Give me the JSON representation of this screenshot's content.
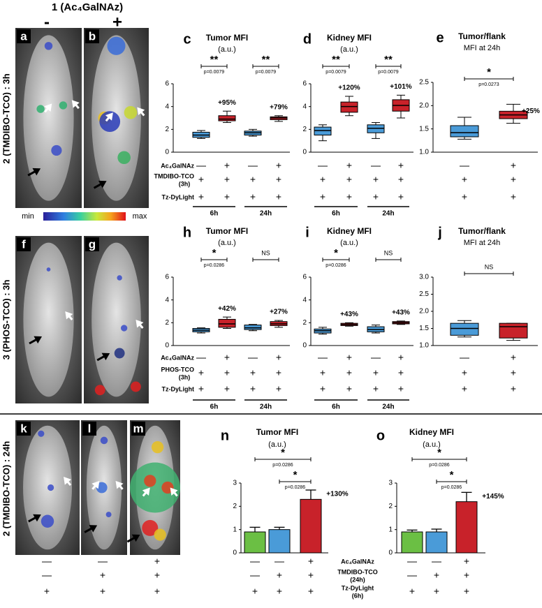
{
  "header": {
    "title": "1 (Ac₄GalNAz)",
    "minus": "-",
    "plus": "+"
  },
  "row_labels": [
    "2 (TMDIBO-TCO) : 3h",
    "3 (PHOS-TCO) : 3h",
    "2 (TMDIBO-TCO) : 24h"
  ],
  "image_panels": [
    "a",
    "b",
    "f",
    "g",
    "k",
    "l",
    "m"
  ],
  "colorbar": {
    "min": "min",
    "max": "max"
  },
  "image_conditions": [
    [
      "—",
      "—",
      "+"
    ],
    [
      "—",
      "+",
      "+"
    ],
    [
      "+",
      "+",
      "+"
    ]
  ],
  "chart_data": [
    {
      "type": "box",
      "panel": "c",
      "title": "Tumor MFI",
      "subtitle": "(a.u.)",
      "ylim": [
        0,
        6
      ],
      "yticks": [
        0,
        2,
        4,
        6
      ],
      "boxes": [
        {
          "color": "#4a9bd8",
          "whislo": 1.2,
          "q1": 1.3,
          "med": 1.5,
          "q3": 1.75,
          "whishi": 1.9
        },
        {
          "color": "#c8222a",
          "whislo": 2.6,
          "q1": 2.75,
          "med": 2.9,
          "q3": 3.2,
          "whishi": 3.6
        },
        {
          "color": "#4a9bd8",
          "whislo": 1.4,
          "q1": 1.5,
          "med": 1.7,
          "q3": 1.85,
          "whishi": 2.0
        },
        {
          "color": "#c8222a",
          "whislo": 2.7,
          "q1": 2.85,
          "med": 3.0,
          "q3": 3.1,
          "whishi": 3.2
        }
      ],
      "brackets": [
        {
          "label": "**",
          "p": "p=0.0079"
        },
        {
          "label": "**",
          "p": "p=0.0079"
        }
      ],
      "changes": [
        "+95%",
        "+79%"
      ],
      "conditions": {
        "rows": [
          {
            "label": "Ac₄GalNAz",
            "signs": [
              "—",
              "+",
              "—",
              "+"
            ]
          },
          {
            "label": "TMDIBO-TCO",
            "note": "(3h)",
            "signs": [
              "+",
              "+",
              "+",
              "+"
            ]
          },
          {
            "label": "Tz-DyLight",
            "signs": [
              "+",
              "+",
              "+",
              "+"
            ]
          }
        ],
        "groups": [
          "6h",
          "24h"
        ]
      }
    },
    {
      "type": "box",
      "panel": "d",
      "title": "Kidney MFI",
      "subtitle": "(a.u.)",
      "ylim": [
        0,
        6
      ],
      "yticks": [
        0,
        2,
        4,
        6
      ],
      "boxes": [
        {
          "color": "#4a9bd8",
          "whislo": 1.0,
          "q1": 1.5,
          "med": 1.9,
          "q3": 2.2,
          "whishi": 2.4
        },
        {
          "color": "#c8222a",
          "whislo": 3.2,
          "q1": 3.5,
          "med": 4.0,
          "q3": 4.4,
          "whishi": 4.9
        },
        {
          "color": "#4a9bd8",
          "whislo": 1.2,
          "q1": 1.7,
          "med": 2.1,
          "q3": 2.4,
          "whishi": 2.6
        },
        {
          "color": "#c8222a",
          "whislo": 3.0,
          "q1": 3.6,
          "med": 4.1,
          "q3": 4.6,
          "whishi": 5.0
        }
      ],
      "brackets": [
        {
          "label": "**",
          "p": "p=0.0079"
        },
        {
          "label": "**",
          "p": "p=0.0079"
        }
      ],
      "changes": [
        "+120%",
        "+101%"
      ],
      "conditions": {
        "rows": [
          {
            "signs": [
              "—",
              "+",
              "—",
              "+"
            ]
          },
          {
            "signs": [
              "+",
              "+",
              "+",
              "+"
            ]
          },
          {
            "signs": [
              "+",
              "+",
              "+",
              "+"
            ]
          }
        ],
        "groups": [
          "6h",
          "24h"
        ]
      }
    },
    {
      "type": "box",
      "panel": "e",
      "title": "Tumor/flank",
      "subtitle": "MFI at 24h",
      "ylim": [
        1.0,
        2.5
      ],
      "yticks": [
        {
          "value": 1,
          "label": "1.0"
        },
        1.5,
        {
          "value": 2,
          "label": "2.0"
        },
        2.5
      ],
      "boxes": [
        {
          "color": "#4a9bd8",
          "whislo": 1.28,
          "q1": 1.33,
          "med": 1.42,
          "q3": 1.57,
          "whishi": 1.75
        },
        {
          "color": "#c8222a",
          "whislo": 1.62,
          "q1": 1.72,
          "med": 1.8,
          "q3": 1.88,
          "whishi": 2.03
        }
      ],
      "brackets": [
        {
          "label": "*",
          "p": "p=0.0273"
        }
      ],
      "changes": [
        "+25%"
      ],
      "conditions": {
        "rows": [
          {
            "signs": [
              "—",
              "+"
            ]
          },
          {
            "signs": [
              "+",
              "+"
            ]
          },
          {
            "signs": [
              "+",
              "+"
            ]
          }
        ]
      }
    },
    {
      "type": "box",
      "panel": "h",
      "title": "Tumor MFI",
      "subtitle": "(a.u.)",
      "ylim": [
        0,
        6
      ],
      "yticks": [
        0,
        2,
        4,
        6
      ],
      "boxes": [
        {
          "color": "#4a9bd8",
          "whislo": 1.1,
          "q1": 1.2,
          "med": 1.35,
          "q3": 1.5,
          "whishi": 1.55
        },
        {
          "color": "#c8222a",
          "whislo": 1.5,
          "q1": 1.6,
          "med": 1.9,
          "q3": 2.3,
          "whishi": 2.5
        },
        {
          "color": "#4a9bd8",
          "whislo": 1.3,
          "q1": 1.4,
          "med": 1.55,
          "q3": 1.8,
          "whishi": 1.85
        },
        {
          "color": "#c8222a",
          "whislo": 1.6,
          "q1": 1.75,
          "med": 1.9,
          "q3": 2.1,
          "whishi": 2.2
        }
      ],
      "brackets": [
        {
          "label": "*",
          "p": "p=0.0286"
        },
        {
          "label": "NS"
        }
      ],
      "changes": [
        "+42%",
        "+27%"
      ],
      "conditions": {
        "rows": [
          {
            "label": "Ac₄GalNAz",
            "signs": [
              "—",
              "+",
              "—",
              "+"
            ]
          },
          {
            "label": "PHOS-TCO",
            "note": "(3h)",
            "signs": [
              "+",
              "+",
              "+",
              "+"
            ]
          },
          {
            "label": "Tz-DyLight",
            "signs": [
              "+",
              "+",
              "+",
              "+"
            ]
          }
        ],
        "groups": [
          "6h",
          "24h"
        ]
      }
    },
    {
      "type": "box",
      "panel": "i",
      "title": "Kidney MFI",
      "subtitle": "(a.u.)",
      "ylim": [
        0,
        6
      ],
      "yticks": [
        0,
        2,
        4,
        6
      ],
      "boxes": [
        {
          "color": "#4a9bd8",
          "whislo": 1.0,
          "q1": 1.1,
          "med": 1.3,
          "q3": 1.45,
          "whishi": 1.6
        },
        {
          "color": "#c8222a",
          "whislo": 1.7,
          "q1": 1.75,
          "med": 1.85,
          "q3": 1.95,
          "whishi": 2.0
        },
        {
          "color": "#4a9bd8",
          "whislo": 1.1,
          "q1": 1.2,
          "med": 1.4,
          "q3": 1.65,
          "whishi": 1.8
        },
        {
          "color": "#c8222a",
          "whislo": 1.85,
          "q1": 1.9,
          "med": 2.0,
          "q3": 2.1,
          "whishi": 2.15
        }
      ],
      "brackets": [
        {
          "label": "*",
          "p": "p=0.0286"
        },
        {
          "label": "NS"
        }
      ],
      "changes": [
        "+43%",
        "+43%"
      ],
      "conditions": {
        "rows": [
          {
            "signs": [
              "—",
              "+",
              "—",
              "+"
            ]
          },
          {
            "signs": [
              "+",
              "+",
              "+",
              "+"
            ]
          },
          {
            "signs": [
              "+",
              "+",
              "+",
              "+"
            ]
          }
        ],
        "groups": [
          "6h",
          "24h"
        ]
      }
    },
    {
      "type": "box",
      "panel": "j",
      "title": "Tumor/flank",
      "subtitle": "MFI at 24h",
      "ylim": [
        1.0,
        3.0
      ],
      "yticks": [
        {
          "value": 1,
          "label": "1.0"
        },
        1.5,
        {
          "value": 2,
          "label": "2.0"
        },
        2.5,
        {
          "value": 3,
          "label": "3.0"
        }
      ],
      "boxes": [
        {
          "color": "#4a9bd8",
          "whislo": 1.25,
          "q1": 1.3,
          "med": 1.5,
          "q3": 1.65,
          "whishi": 1.73
        },
        {
          "color": "#c8222a",
          "whislo": 1.15,
          "q1": 1.22,
          "med": 1.55,
          "q3": 1.65,
          "whishi": 1.65
        }
      ],
      "brackets": [
        {
          "label": "NS"
        }
      ],
      "changes": [],
      "conditions": {
        "rows": [
          {
            "signs": [
              "—",
              "+"
            ]
          },
          {
            "signs": [
              "+",
              "+"
            ]
          },
          {
            "signs": [
              "+",
              "+"
            ]
          }
        ]
      }
    },
    {
      "type": "bar",
      "panel": "n",
      "title": "Tumor MFI",
      "subtitle": "(a.u.)",
      "ylim": [
        0,
        3
      ],
      "yticks": [
        0,
        1,
        2,
        3
      ],
      "values": [
        0.9,
        1.0,
        2.3
      ],
      "errors": [
        0.2,
        0.1,
        0.4
      ],
      "colors": [
        "#6bbf44",
        "#4a9bd8",
        "#c8222a"
      ],
      "brackets": [
        {
          "label": "*",
          "p": "p=0.0286"
        },
        {
          "label": "*",
          "p": "p=0.0286"
        }
      ],
      "changes": [
        "+130%"
      ],
      "conditions": {
        "rows": [
          {
            "label": "Ac₄GalNAz",
            "signs": [
              "—",
              "—",
              "+"
            ]
          },
          {
            "label": "TMDIBO-TCO",
            "note": "(24h)",
            "signs": [
              "—",
              "+",
              "+"
            ]
          },
          {
            "label": "Tz-DyLight",
            "note": "(6h)",
            "signs": [
              "+",
              "+",
              "+"
            ]
          }
        ]
      }
    },
    {
      "type": "bar",
      "panel": "o",
      "title": "Kidney MFI",
      "subtitle": "(a.u.)",
      "ylim": [
        0,
        3
      ],
      "yticks": [
        0,
        1,
        2,
        3
      ],
      "values": [
        0.9,
        0.9,
        2.2
      ],
      "errors": [
        0.08,
        0.12,
        0.4
      ],
      "colors": [
        "#6bbf44",
        "#4a9bd8",
        "#c8222a"
      ],
      "brackets": [
        {
          "label": "*",
          "p": "p=0.0286"
        },
        {
          "label": "*",
          "p": "p=0.0286"
        }
      ],
      "changes": [
        "+145%"
      ],
      "conditions": {
        "rows": [
          {
            "signs": [
              "—",
              "—",
              "+"
            ]
          },
          {
            "signs": [
              "—",
              "+",
              "+"
            ]
          },
          {
            "signs": [
              "+",
              "+",
              "+"
            ]
          }
        ]
      }
    }
  ]
}
